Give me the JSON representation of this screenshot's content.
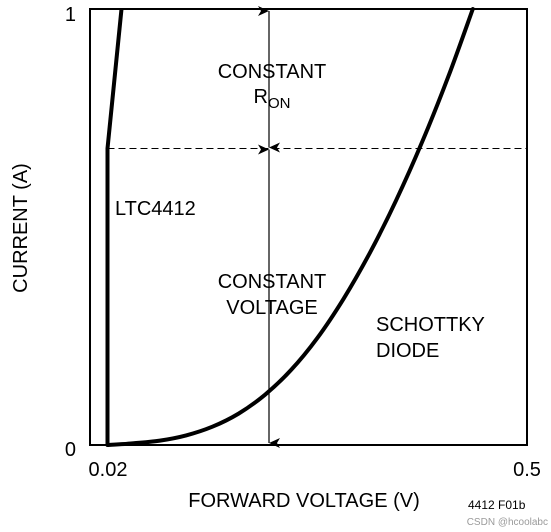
{
  "chart_data": {
    "type": "line",
    "xlabel": "FORWARD VOLTAGE (V)",
    "ylabel": "CURRENT (A)",
    "x_ticks": [
      {
        "value": 0.02,
        "label": "0.02"
      },
      {
        "value": 0.5,
        "label": "0.5"
      }
    ],
    "y_ticks": [
      {
        "value": 0,
        "label": "0"
      },
      {
        "value": 1,
        "label": "1"
      }
    ],
    "xlim": [
      0.0,
      0.5
    ],
    "ylim": [
      0,
      1
    ],
    "threshold_current": 0.68,
    "series": [
      {
        "name": "LTC4412",
        "points": [
          [
            0.02,
            0.0
          ],
          [
            0.02,
            0.68
          ],
          [
            0.036,
            1.0
          ]
        ]
      },
      {
        "name": "SCHOTTKY DIODE",
        "points": [
          [
            0.02,
            0.0
          ],
          [
            0.05,
            0.004
          ],
          [
            0.08,
            0.01
          ],
          [
            0.11,
            0.022
          ],
          [
            0.14,
            0.042
          ],
          [
            0.17,
            0.072
          ],
          [
            0.2,
            0.115
          ],
          [
            0.23,
            0.172
          ],
          [
            0.26,
            0.245
          ],
          [
            0.29,
            0.335
          ],
          [
            0.32,
            0.44
          ],
          [
            0.35,
            0.56
          ],
          [
            0.38,
            0.695
          ],
          [
            0.41,
            0.845
          ],
          [
            0.438,
            1.0
          ]
        ]
      }
    ],
    "annotations": {
      "constant_ron": [
        "CONSTANT",
        "R",
        "ON"
      ],
      "constant_voltage": [
        "CONSTANT",
        "VOLTAGE"
      ],
      "ltc_label": "LTC4412",
      "schottky_label": [
        "SCHOTTKY",
        "DIODE"
      ]
    },
    "figure_id": "4412 F01b"
  },
  "watermark": "CSDN @hcoolabc"
}
